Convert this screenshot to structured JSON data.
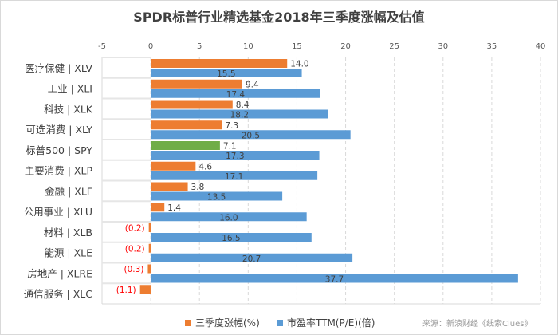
{
  "title": "SPDR标普行业精选基金2018年三季度涨幅及估值",
  "chart_data": {
    "type": "bar",
    "orientation": "horizontal",
    "title": "SPDR标普行业精选基金2018年三季度涨幅及估值",
    "categories": [
      "医疗保健 | XLV",
      "工业 | XLI",
      "科技 | XLK",
      "可选消费 | XLY",
      "标普500 | SPY",
      "主要消费 | XLP",
      "金融 | XLF",
      "公用事业 | XLU",
      "材料 | XLB",
      "能源 | XLE",
      "房地产 | XLRE",
      "通信服务 | XLC"
    ],
    "series": [
      {
        "name": "三季度涨幅(%)",
        "color": "#ED7D31",
        "highlight_color": "#70AD47",
        "highlight_category": "标普500 | SPY",
        "values": [
          14.0,
          9.4,
          8.4,
          7.3,
          7.1,
          4.6,
          3.8,
          1.4,
          -0.2,
          -0.2,
          -0.3,
          -1.1
        ],
        "labels": [
          "14.0",
          "9.4",
          "8.4",
          "7.3",
          "7.1",
          "4.6",
          "3.8",
          "1.4",
          "(0.2)",
          "(0.2)",
          "(0.3)",
          "(1.1)"
        ]
      },
      {
        "name": "市盈率TTM(P/E)(倍)",
        "color": "#5B9BD5",
        "values": [
          15.5,
          17.4,
          18.2,
          20.5,
          17.3,
          17.1,
          13.5,
          16.0,
          16.5,
          20.7,
          37.7,
          null
        ],
        "labels": [
          "15.5",
          "17.4",
          "18.2",
          "20.5",
          "17.3",
          "17.1",
          "13.5",
          "16.0",
          "16.5",
          "20.7",
          "37.7",
          ""
        ]
      }
    ],
    "xlim": [
      -5,
      40
    ],
    "xticks": [
      "-5",
      "0",
      "5",
      "10",
      "15",
      "20",
      "25",
      "30",
      "35",
      "40"
    ],
    "xaxis_position": "top",
    "grid": true,
    "legend": "bottom",
    "negative_label_color": "#FF0000"
  },
  "source": "来源：新浪财经《线索Clues》"
}
